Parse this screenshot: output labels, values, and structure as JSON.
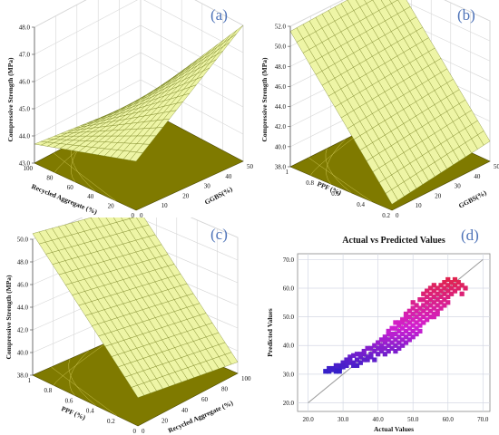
{
  "chart_data": [
    {
      "panel_label": "(a)",
      "type": "surface3d",
      "zlabel": "Compressive Strength (MPa)",
      "xlabel": "Recycled Aggregate (%)",
      "ylabel": "GGBS(%)",
      "zticks": [
        "43.0",
        "44.0",
        "45.0",
        "46.0",
        "47.0",
        "48.0"
      ],
      "xticks": [
        "0",
        "20",
        "40",
        "60",
        "80",
        "100"
      ],
      "yticks": [
        "0",
        "10",
        "20",
        "30",
        "40",
        "50"
      ],
      "zlim": [
        43,
        48
      ],
      "corners": {
        "ra0_ggbs0": 44.8,
        "ra100_ggbs0": 43.7,
        "ra0_ggbs50": 48.0,
        "ra100_ggbs50": 43.2
      },
      "surface_color": "#eef5a6",
      "floor_color": "#7f7a00"
    },
    {
      "panel_label": "(b)",
      "type": "surface3d",
      "zlabel": "Compressive Strength (MPa)",
      "xlabel": "PPF (%)",
      "ylabel": "GGBS(%)",
      "zticks": [
        "38.0",
        "40.0",
        "42.0",
        "44.0",
        "46.0",
        "48.0",
        "50.0",
        "52.0"
      ],
      "xticks": [
        "0.2",
        "0.4",
        "0.6",
        "0.8",
        "1"
      ],
      "yticks": [
        "0",
        "10",
        "20",
        "30",
        "40",
        "50"
      ],
      "zlim": [
        38,
        52
      ],
      "corners": {
        "ppf0_ggbs0": 38.6,
        "ppf1_ggbs0": 51.5,
        "ppf0_ggbs50": 40.0,
        "ppf1_ggbs50": 52.0
      },
      "surface_color": "#eef5a6",
      "floor_color": "#7f7a00"
    },
    {
      "panel_label": "(c)",
      "type": "surface3d",
      "zlabel": "Compressive Strength (MPa)",
      "xlabel": "PPF (%)",
      "ylabel": "Recycled Aggregate (%)",
      "zticks": [
        "38.0",
        "40.0",
        "42.0",
        "44.0",
        "46.0",
        "48.0",
        "50.0"
      ],
      "xticks": [
        "0",
        "0.2",
        "0.4",
        "0.6",
        "0.8",
        "1"
      ],
      "yticks": [
        "0",
        "20",
        "40",
        "60",
        "80",
        "100"
      ],
      "zlim": [
        38,
        50
      ],
      "corners": {
        "ppf0_ra0": 40.5,
        "ppf1_ra0": 50.5,
        "ppf0_ra100": 39.0,
        "ppf1_ra100": 49.0
      },
      "surface_color": "#eef5a6",
      "floor_color": "#7f7a00"
    },
    {
      "panel_label": "(d)",
      "type": "scatter",
      "title": "Actual vs Predicted Values",
      "xlabel": "Actual Values",
      "ylabel": "Predicted Values",
      "xticks": [
        "20.0",
        "30.0",
        "40.0",
        "50.0",
        "60.0",
        "70.0"
      ],
      "yticks": [
        "20.0",
        "30.0",
        "40.0",
        "50.0",
        "60.0",
        "70.0"
      ],
      "xlim": [
        17,
        72
      ],
      "ylim": [
        17,
        72
      ],
      "grid": true,
      "reference_line": [
        [
          20,
          20
        ],
        [
          70,
          70
        ]
      ],
      "color_low": "#2b1fc9",
      "color_mid": "#d21fd1",
      "color_high": "#e0234f",
      "points": [
        [
          26,
          31
        ],
        [
          27,
          31.5
        ],
        [
          28,
          32
        ],
        [
          28,
          31
        ],
        [
          29,
          33
        ],
        [
          29,
          32
        ],
        [
          30,
          34
        ],
        [
          30,
          32.5
        ],
        [
          31,
          33
        ],
        [
          31,
          35
        ],
        [
          32,
          34
        ],
        [
          32,
          36
        ],
        [
          33,
          33
        ],
        [
          33,
          36.5
        ],
        [
          34,
          35
        ],
        [
          34,
          37
        ],
        [
          35,
          36
        ],
        [
          35,
          34
        ],
        [
          36,
          37
        ],
        [
          36,
          38
        ],
        [
          37,
          35
        ],
        [
          37,
          39
        ],
        [
          38,
          37
        ],
        [
          38,
          36
        ],
        [
          39,
          38
        ],
        [
          39,
          40
        ],
        [
          40,
          37
        ],
        [
          40,
          39
        ],
        [
          40,
          41
        ],
        [
          41,
          38
        ],
        [
          41,
          40
        ],
        [
          42,
          39
        ],
        [
          42,
          41
        ],
        [
          42,
          37
        ],
        [
          43,
          40
        ],
        [
          43,
          42
        ],
        [
          43,
          38
        ],
        [
          44,
          39
        ],
        [
          44,
          41
        ],
        [
          44,
          43
        ],
        [
          45,
          40
        ],
        [
          45,
          42
        ],
        [
          45,
          44
        ],
        [
          45,
          38
        ],
        [
          46,
          41
        ],
        [
          46,
          43
        ],
        [
          46,
          45
        ],
        [
          46,
          39
        ],
        [
          47,
          42
        ],
        [
          47,
          44
        ],
        [
          47,
          46
        ],
        [
          47,
          48
        ],
        [
          48,
          43
        ],
        [
          48,
          45
        ],
        [
          48,
          47
        ],
        [
          48,
          49
        ],
        [
          48,
          41
        ],
        [
          49,
          44
        ],
        [
          49,
          46
        ],
        [
          49,
          48
        ],
        [
          49,
          50
        ],
        [
          49,
          42
        ],
        [
          50,
          45
        ],
        [
          50,
          47
        ],
        [
          50,
          49
        ],
        [
          50,
          51
        ],
        [
          50,
          43
        ],
        [
          51,
          46
        ],
        [
          51,
          48
        ],
        [
          51,
          50
        ],
        [
          51,
          52
        ],
        [
          51,
          44
        ],
        [
          52,
          47
        ],
        [
          52,
          49
        ],
        [
          52,
          51
        ],
        [
          52,
          53
        ],
        [
          52,
          45
        ],
        [
          53,
          48
        ],
        [
          53,
          50
        ],
        [
          53,
          52
        ],
        [
          53,
          54
        ],
        [
          53,
          56
        ],
        [
          54,
          49
        ],
        [
          54,
          51
        ],
        [
          54,
          53
        ],
        [
          54,
          55
        ],
        [
          54,
          57
        ],
        [
          55,
          50
        ],
        [
          55,
          52
        ],
        [
          55,
          54
        ],
        [
          55,
          56
        ],
        [
          55,
          58
        ],
        [
          56,
          51
        ],
        [
          56,
          53
        ],
        [
          56,
          55
        ],
        [
          56,
          57
        ],
        [
          56,
          59
        ],
        [
          57,
          52
        ],
        [
          57,
          54
        ],
        [
          57,
          56
        ],
        [
          57,
          58
        ],
        [
          57,
          60
        ],
        [
          58,
          55
        ],
        [
          58,
          57
        ],
        [
          58,
          59
        ],
        [
          58,
          61
        ],
        [
          59,
          56
        ],
        [
          59,
          58
        ],
        [
          59,
          60
        ],
        [
          59,
          62
        ],
        [
          60,
          57
        ],
        [
          60,
          59
        ],
        [
          60,
          61
        ],
        [
          60,
          63
        ],
        [
          61,
          58
        ],
        [
          61,
          60
        ],
        [
          61,
          62
        ],
        [
          62,
          59
        ],
        [
          62,
          61
        ],
        [
          62,
          63
        ],
        [
          63,
          60
        ],
        [
          63,
          62
        ],
        [
          64,
          58
        ],
        [
          64,
          61
        ],
        [
          65,
          60
        ],
        [
          45,
          48
        ],
        [
          44,
          46
        ],
        [
          43,
          44
        ],
        [
          42,
          43
        ],
        [
          41,
          42
        ],
        [
          46,
          47
        ],
        [
          47,
          40
        ],
        [
          48,
          51
        ],
        [
          50,
          55
        ],
        [
          52,
          56
        ],
        [
          53,
          58
        ],
        [
          51,
          54
        ],
        [
          55,
          60
        ],
        [
          54,
          59
        ],
        [
          56,
          61
        ],
        [
          39,
          35
        ],
        [
          38,
          39
        ],
        [
          37,
          36
        ],
        [
          36,
          35
        ],
        [
          35,
          37
        ],
        [
          34,
          33
        ],
        [
          33,
          34
        ],
        [
          32,
          35
        ],
        [
          31,
          34
        ],
        [
          30,
          33
        ],
        [
          29,
          31
        ],
        [
          28,
          33
        ],
        [
          27,
          32
        ],
        [
          26,
          32
        ],
        [
          25,
          31
        ],
        [
          60,
          55
        ],
        [
          59,
          54
        ],
        [
          58,
          53
        ],
        [
          57,
          51
        ],
        [
          56,
          50
        ],
        [
          50,
          53
        ],
        [
          49,
          52
        ],
        [
          48,
          50
        ],
        [
          47,
          49
        ],
        [
          46,
          48
        ],
        [
          45,
          46
        ],
        [
          44,
          44
        ],
        [
          43,
          45
        ],
        [
          42,
          42
        ],
        [
          41,
          39
        ]
      ]
    }
  ]
}
